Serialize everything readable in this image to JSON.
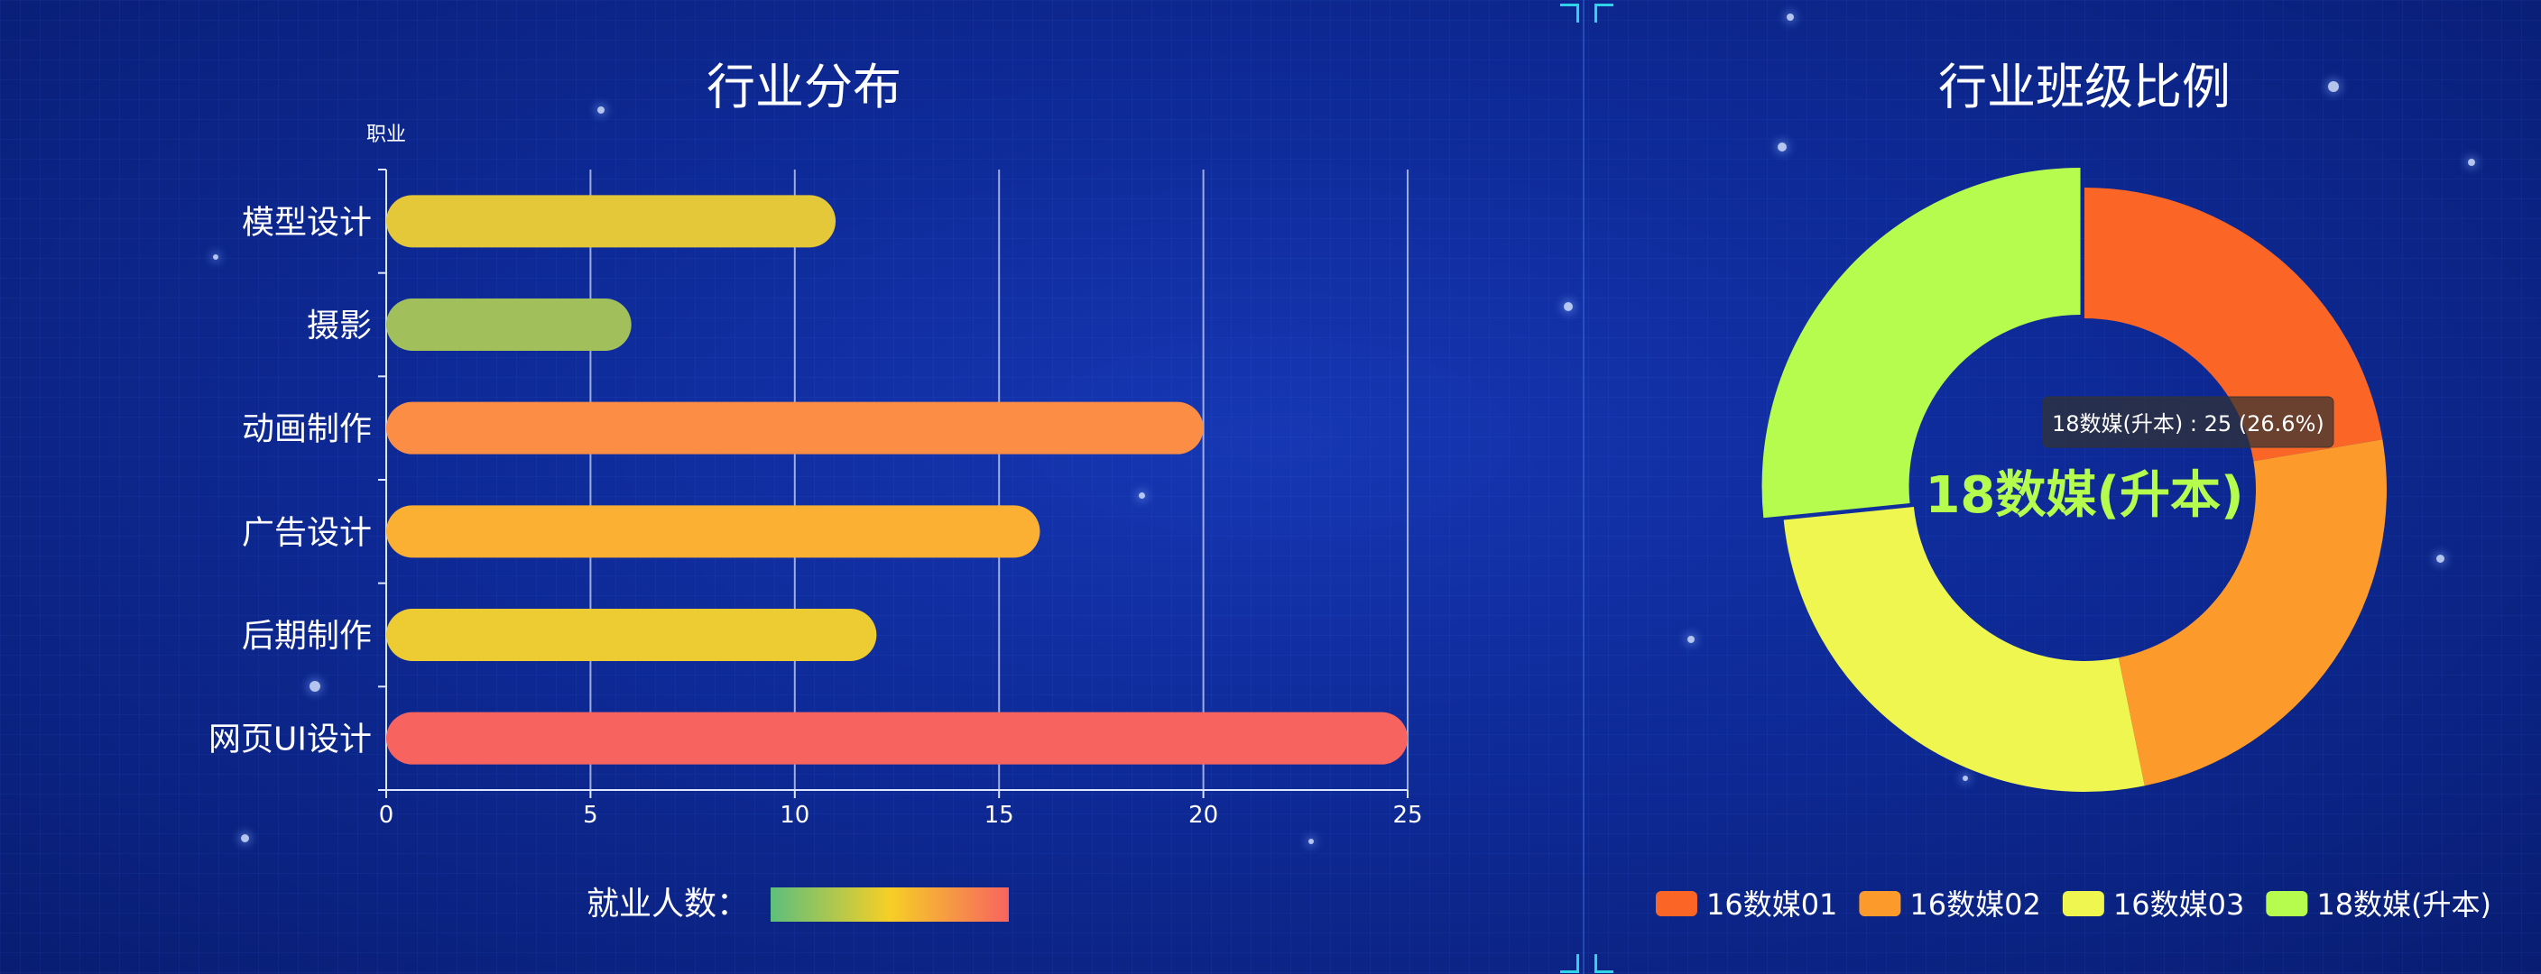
{
  "chart_data": [
    {
      "type": "bar",
      "orientation": "horizontal",
      "title": "行业分布",
      "ylabel": "职业",
      "categories": [
        "模型设计",
        "摄影",
        "动画制作",
        "广告设计",
        "后期制作",
        "网页UI设计"
      ],
      "values": [
        11,
        6,
        20,
        16,
        12,
        25
      ],
      "xlim": [
        0,
        25
      ],
      "xticks": [
        0,
        5,
        10,
        15,
        20,
        25
      ],
      "grid": true,
      "visual_map": {
        "label": "就业人数：",
        "colors": [
          "#5dbf7c",
          "#f6cf26",
          "#f7645f"
        ]
      },
      "bar_colors": [
        "#e5c83a",
        "#a1c05c",
        "#fc8d44",
        "#fbb034",
        "#edcb32",
        "#f7645f"
      ]
    },
    {
      "type": "pie",
      "variant": "donut",
      "title": "行业班级比例",
      "slices": [
        {
          "name": "16数媒01",
          "value": 21,
          "color": "#fb6526"
        },
        {
          "name": "16数媒02",
          "value": 23,
          "color": "#fc9a2b"
        },
        {
          "name": "16数媒03",
          "value": 25,
          "color": "#eff64f"
        },
        {
          "name": "18数媒(升本)",
          "value": 25,
          "color": "#b6fc4e"
        }
      ],
      "highlighted": "18数媒(升本)",
      "center_label": "18数媒(升本)",
      "tooltip": "18数媒(升本) : 25 (26.6%)",
      "legend_position": "bottom"
    }
  ]
}
